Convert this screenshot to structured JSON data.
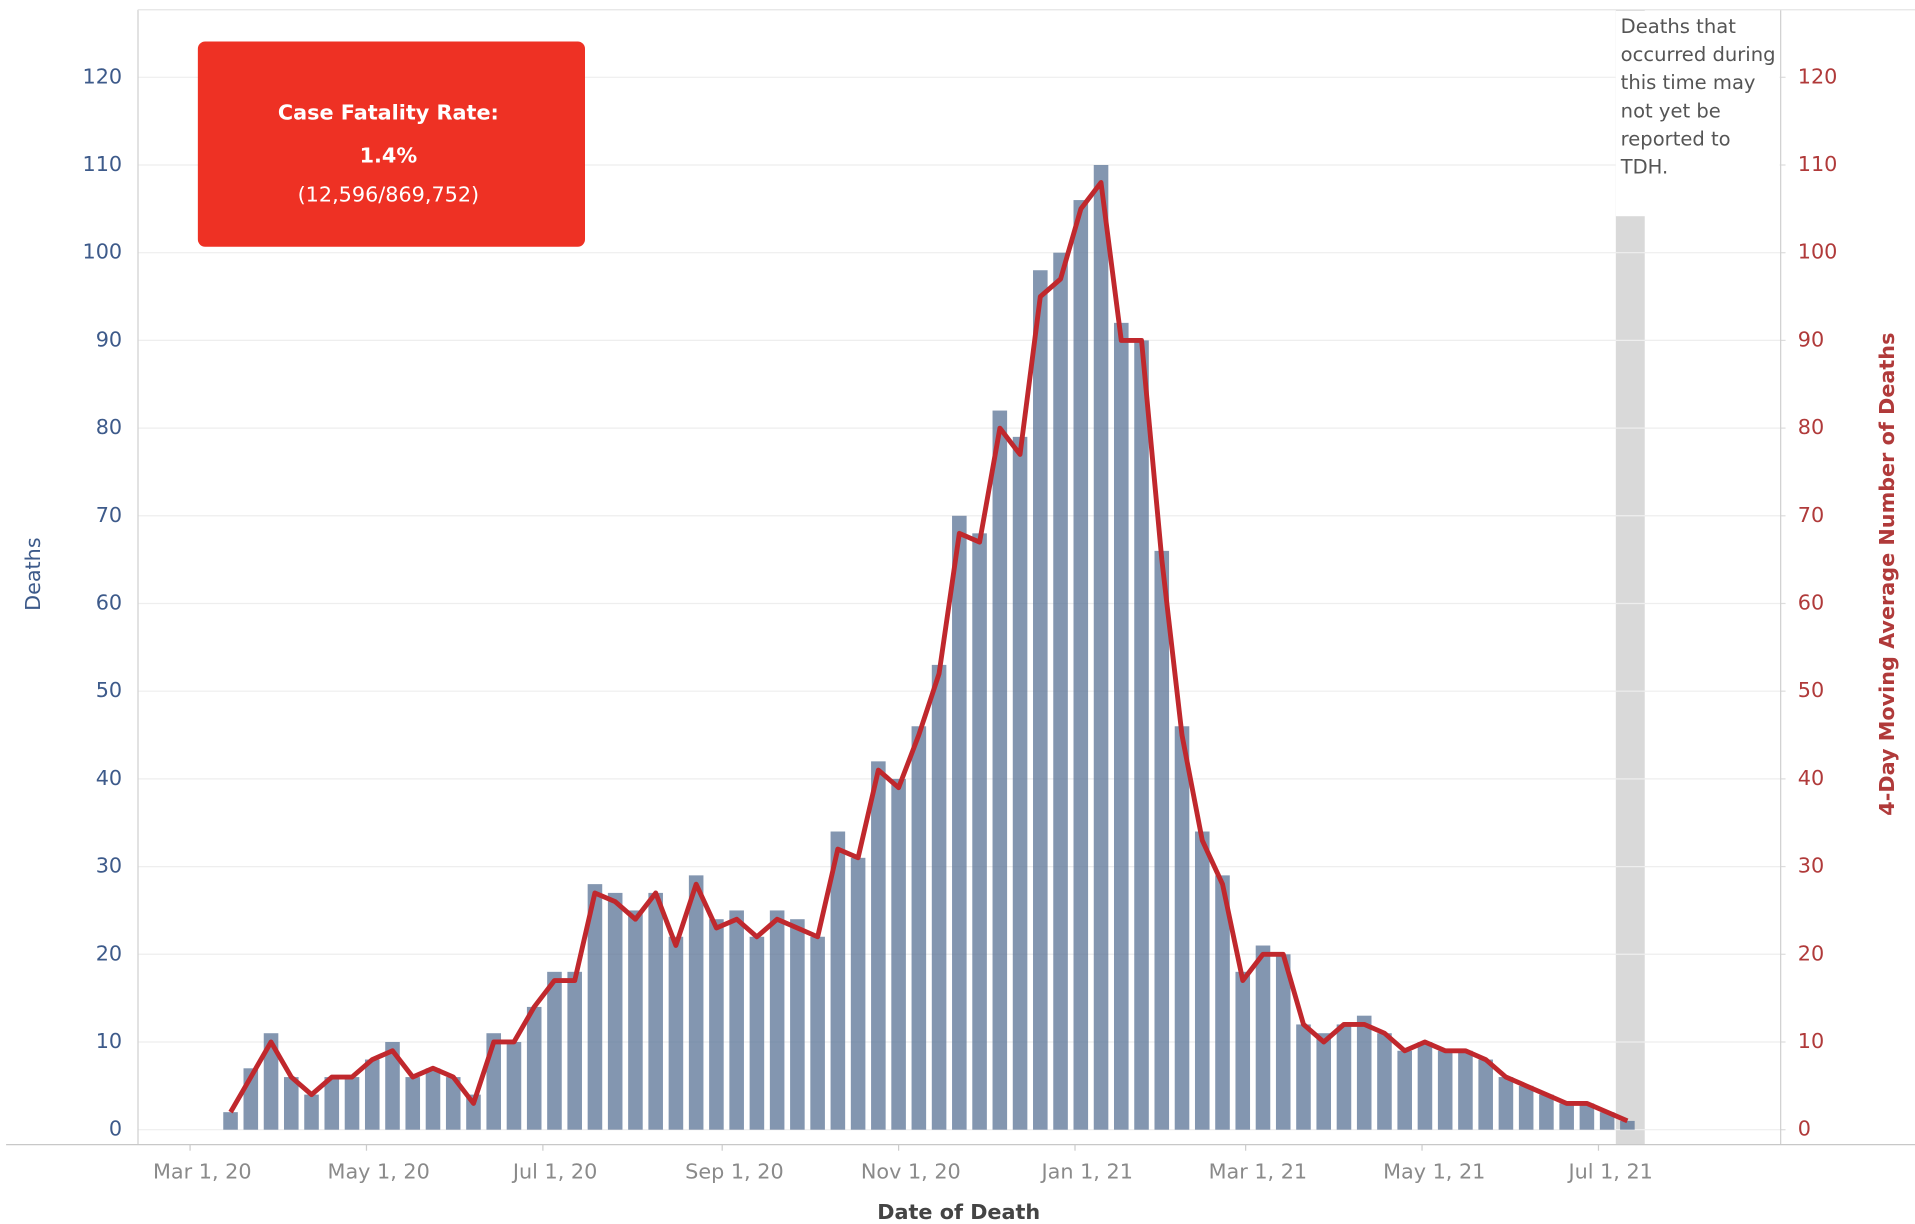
{
  "chart_data": {
    "type": "combo",
    "x_label": "Date of Death",
    "y_label": "Deaths",
    "y2_label": "4-Day Moving Average Number of Deaths",
    "annotations": {
      "box_title": "Case Fatality Rate:",
      "box_value": "1.4%",
      "box_detail": "(12,596/869,752)",
      "shaded_note": "Deaths that occurred during this time may not yet be reported to TDH.",
      "shaded_range": [
        "2021-07-07",
        "2021-07-17"
      ],
      "box_color": "#ee3124",
      "shaded_color": "#d9d9d9"
    },
    "x": [
      "2020-03-15",
      "2020-03-22",
      "2020-03-29",
      "2020-04-05",
      "2020-04-12",
      "2020-04-19",
      "2020-04-26",
      "2020-05-03",
      "2020-05-10",
      "2020-05-17",
      "2020-05-24",
      "2020-05-31",
      "2020-06-07",
      "2020-06-14",
      "2020-06-21",
      "2020-06-28",
      "2020-07-05",
      "2020-07-12",
      "2020-07-19",
      "2020-07-26",
      "2020-08-02",
      "2020-08-09",
      "2020-08-16",
      "2020-08-23",
      "2020-08-30",
      "2020-09-06",
      "2020-09-13",
      "2020-09-20",
      "2020-09-27",
      "2020-10-04",
      "2020-10-11",
      "2020-10-18",
      "2020-10-25",
      "2020-11-01",
      "2020-11-08",
      "2020-11-15",
      "2020-11-22",
      "2020-11-29",
      "2020-12-06",
      "2020-12-13",
      "2020-12-20",
      "2020-12-27",
      "2021-01-03",
      "2021-01-10",
      "2021-01-17",
      "2021-01-24",
      "2021-01-31",
      "2021-02-07",
      "2021-02-14",
      "2021-02-21",
      "2021-02-28",
      "2021-03-07",
      "2021-03-14",
      "2021-03-21",
      "2021-03-28",
      "2021-04-04",
      "2021-04-11",
      "2021-04-18",
      "2021-04-25",
      "2021-05-02",
      "2021-05-09",
      "2021-05-16",
      "2021-05-23",
      "2021-05-30",
      "2021-06-06",
      "2021-06-13",
      "2021-06-20",
      "2021-06-27",
      "2021-07-04",
      "2021-07-11"
    ],
    "series": [
      {
        "type": "bar",
        "color": "#5a7396",
        "values": [
          2,
          7,
          11,
          6,
          4,
          6,
          6,
          8,
          10,
          6,
          7,
          6,
          4,
          11,
          10,
          14,
          18,
          18,
          28,
          27,
          25,
          27,
          22,
          29,
          24,
          25,
          22,
          25,
          24,
          22,
          34,
          31,
          42,
          40,
          46,
          53,
          70,
          68,
          82,
          79,
          98,
          100,
          106,
          110,
          92,
          90,
          66,
          46,
          34,
          29,
          18,
          21,
          20,
          12,
          11,
          12,
          13,
          11,
          9,
          10,
          9,
          9,
          8,
          6,
          5,
          4,
          3,
          3,
          2,
          1
        ]
      },
      {
        "type": "line",
        "axis": "y2",
        "color": "#c0282d",
        "values": [
          2,
          6,
          10,
          6,
          4,
          6,
          6,
          8,
          9,
          6,
          7,
          6,
          3,
          10,
          10,
          14,
          17,
          17,
          27,
          26,
          24,
          27,
          21,
          28,
          23,
          24,
          22,
          24,
          23,
          22,
          32,
          31,
          41,
          39,
          45,
          52,
          68,
          67,
          80,
          77,
          95,
          97,
          105,
          108,
          90,
          90,
          65,
          45,
          33,
          28,
          17,
          20,
          20,
          12,
          10,
          12,
          12,
          11,
          9,
          10,
          9,
          9,
          8,
          6,
          5,
          4,
          3,
          3,
          2,
          1
        ]
      }
    ],
    "xlim": [
      "2020-02-12",
      "2021-09-02"
    ],
    "xticks": [
      {
        "value": "2020-03-01",
        "label": "Mar 1, 20"
      },
      {
        "value": "2020-05-01",
        "label": "May 1, 20"
      },
      {
        "value": "2020-07-01",
        "label": "Jul 1, 20"
      },
      {
        "value": "2020-09-01",
        "label": "Sep 1, 20"
      },
      {
        "value": "2020-11-01",
        "label": "Nov 1, 20"
      },
      {
        "value": "2021-01-01",
        "label": "Jan 1, 21"
      },
      {
        "value": "2021-03-01",
        "label": "Mar 1, 21"
      },
      {
        "value": "2021-05-01",
        "label": "May 1, 21"
      },
      {
        "value": "2021-07-01",
        "label": "Jul 1, 21"
      }
    ],
    "ylim": [
      -1.7,
      127.7
    ],
    "yticks": [
      0,
      10,
      20,
      30,
      40,
      50,
      60,
      70,
      80,
      90,
      100,
      110,
      120
    ],
    "y2lim": [
      -1.7,
      127.7
    ],
    "y2ticks": [
      0,
      10,
      20,
      30,
      40,
      50,
      60,
      70,
      80,
      90,
      100,
      110,
      120
    ],
    "y_color": "#3d5a8a",
    "y2_color": "#b03a3a",
    "grid": true
  }
}
